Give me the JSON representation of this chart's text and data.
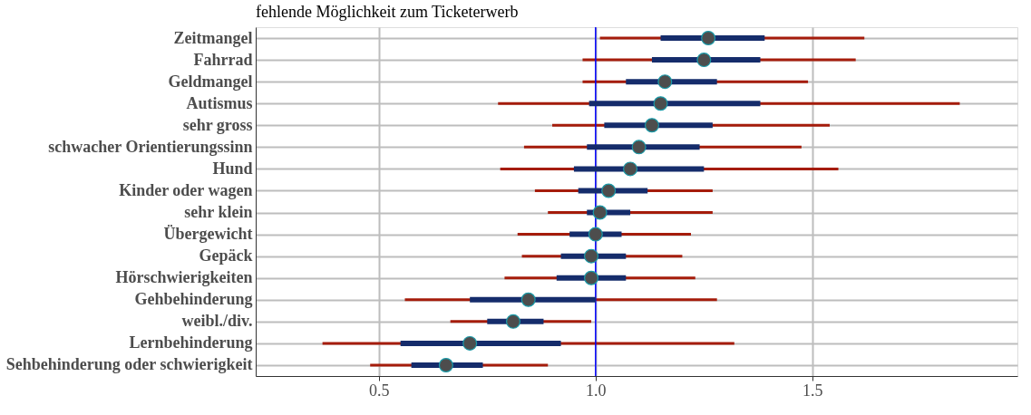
{
  "chart_data": {
    "type": "bar",
    "orientation": "horizontal",
    "title": "fehlende Möglichkeit zum Ticketerwerb",
    "categories": [
      "Zeitmangel",
      "Fahrrad",
      "Geldmangel",
      "Autismus",
      "sehr gross",
      "schwacher Orientierungssinn",
      "Hund",
      "Kinder oder wagen",
      "sehr klein",
      "Übergewicht",
      "Gepäck",
      "Hörschwierigkeiten",
      "Gehbehinderung",
      "weibl./div.",
      "Lernbehinderung",
      "Sehbehinderung oder schwierigkeit"
    ],
    "series": [
      {
        "type": "bar",
        "color": "#a51c0b",
        "base": [
          1.01,
          0.97,
          0.97,
          0.775,
          0.9,
          0.835,
          0.78,
          0.86,
          0.89,
          0.82,
          0.83,
          0.79,
          0.56,
          0.665,
          0.37,
          0.48
        ],
        "values": [
          0.61,
          0.63,
          0.52,
          1.065,
          0.64,
          0.64,
          0.78,
          0.41,
          0.38,
          0.4,
          0.37,
          0.44,
          0.72,
          0.325,
          0.95,
          0.41
        ]
      },
      {
        "type": "bar",
        "color": "#152c6b",
        "base": [
          1.15,
          1.13,
          1.07,
          0.985,
          1.02,
          0.98,
          0.95,
          0.96,
          0.98,
          0.94,
          0.92,
          0.91,
          0.71,
          0.75,
          0.55,
          0.575
        ],
        "values": [
          0.24,
          0.25,
          0.21,
          0.395,
          0.25,
          0.26,
          0.3,
          0.16,
          0.1,
          0.12,
          0.15,
          0.16,
          0.29,
          0.13,
          0.37,
          0.165
        ]
      },
      {
        "type": "scatter",
        "color": "#4d4d4d",
        "values": [
          1.26,
          1.25,
          1.16,
          1.15,
          1.13,
          1.1,
          1.08,
          1.03,
          1.01,
          1.0,
          0.99,
          0.99,
          0.845,
          0.81,
          0.71,
          0.655
        ]
      }
    ],
    "xlim": [
      0.216,
      1.973
    ],
    "xticks": [
      0.5,
      {
        "value": 1,
        "label": "1.0"
      },
      1.5
    ],
    "grid": true,
    "marker": "circle",
    "ref_lines": [
      {
        "axis": "x",
        "value": 1,
        "color": "#0000ff"
      }
    ]
  }
}
